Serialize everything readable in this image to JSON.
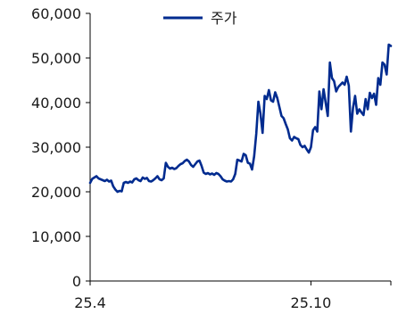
{
  "chart_data": {
    "type": "line",
    "legend": {
      "position": "top-center",
      "label": "주가"
    },
    "grid": false,
    "ylim": [
      0,
      60000
    ],
    "yticks": [
      0,
      10000,
      20000,
      30000,
      40000,
      50000,
      60000
    ],
    "yticklabels": [
      "0",
      "10,000",
      "20,000",
      "30,000",
      "40,000",
      "50,000",
      "60,000"
    ],
    "xtick_labels": [
      {
        "label": "25.4",
        "index": 0
      },
      {
        "label": "25.10",
        "index": 105
      }
    ],
    "series": [
      {
        "name": "주가",
        "color": "#002b8f",
        "values": [
          22000,
          22900,
          23200,
          23500,
          23000,
          22800,
          22600,
          22400,
          22700,
          22300,
          22500,
          21200,
          20500,
          20000,
          20200,
          20100,
          22000,
          22200,
          22000,
          22300,
          22100,
          22800,
          23000,
          22600,
          22400,
          23200,
          22900,
          23100,
          22400,
          22300,
          22600,
          23000,
          23500,
          22800,
          22600,
          23000,
          26500,
          25600,
          25200,
          25400,
          25100,
          25300,
          25800,
          26200,
          26400,
          26900,
          27200,
          26800,
          26000,
          25600,
          26200,
          26800,
          27000,
          25800,
          24300,
          24000,
          24200,
          23900,
          24100,
          23800,
          24200,
          24000,
          23500,
          22800,
          22500,
          22300,
          22400,
          22300,
          22800,
          24000,
          27200,
          27000,
          26800,
          28500,
          28200,
          26500,
          26300,
          25000,
          28000,
          33000,
          40200,
          37500,
          33200,
          41500,
          40800,
          42800,
          40500,
          40200,
          42300,
          41000,
          39000,
          37000,
          36500,
          35200,
          34000,
          32000,
          31500,
          32300,
          32000,
          31800,
          30500,
          30000,
          30300,
          29500,
          28800,
          30000,
          33800,
          34500,
          33500,
          42500,
          38500,
          43000,
          40000,
          37000,
          49000,
          45500,
          44800,
          42500,
          43500,
          44000,
          44500,
          44000,
          45800,
          43800,
          33500,
          38800,
          41500,
          37500,
          38500,
          37800,
          37200,
          40800,
          38500,
          42200,
          41000,
          42000,
          39500,
          45500,
          44000,
          49000,
          48500,
          46300,
          53000,
          52700
        ]
      }
    ]
  }
}
